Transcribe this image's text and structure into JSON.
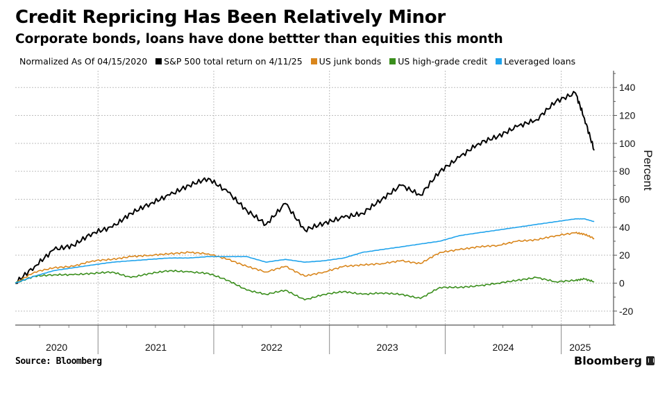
{
  "header": {
    "title": "Credit Repricing Has Been Relatively Minor",
    "subtitle": "Corporate bonds, loans have done bettter than equities this month"
  },
  "legend": {
    "note": "Normalized As Of 04/15/2020",
    "items": [
      {
        "label": "S&P 500 total return on 4/11/25",
        "color": "#000000"
      },
      {
        "label": "US junk bonds",
        "color": "#d9861c"
      },
      {
        "label": "US high-grade credit",
        "color": "#3a8e1c"
      },
      {
        "label": "Leveraged loans",
        "color": "#1fa3ec"
      }
    ]
  },
  "footer": {
    "source": "Source: Bloomberg",
    "brand": "Bloomberg"
  },
  "chart_data": {
    "type": "line",
    "title": "Credit Repricing Has Been Relatively Minor",
    "subtitle": "Corporate bonds, loans have done bettter than equities this month",
    "xlabel": "",
    "ylabel": "Percent",
    "ylim": [
      -30,
      152
    ],
    "yticks": [
      -20,
      0,
      20,
      40,
      60,
      80,
      100,
      120,
      140
    ],
    "xlim": [
      "2020-04-15",
      "2025-06-15"
    ],
    "xtick_labels": [
      "2020",
      "2021",
      "2022",
      "2023",
      "2024",
      "2025"
    ],
    "year_boundaries": [
      "2021-01-01",
      "2022-01-01",
      "2023-01-01",
      "2024-01-01",
      "2025-01-01"
    ],
    "grid": true,
    "legend_position": "top",
    "y_axis_side": "right",
    "x": [
      "2020-04",
      "2020-06",
      "2020-08",
      "2020-10",
      "2020-12",
      "2021-02",
      "2021-04",
      "2021-06",
      "2021-08",
      "2021-10",
      "2021-12",
      "2022-02",
      "2022-04",
      "2022-06",
      "2022-08",
      "2022-10",
      "2022-12",
      "2023-02",
      "2023-04",
      "2023-06",
      "2023-08",
      "2023-10",
      "2023-12",
      "2024-02",
      "2024-04",
      "2024-06",
      "2024-08",
      "2024-10",
      "2024-12",
      "2025-02",
      "2025-03",
      "2025-04"
    ],
    "series": [
      {
        "name": "S&P 500 total return on 4/11/25",
        "color": "#000000",
        "values": [
          0,
          12,
          24,
          27,
          36,
          40,
          50,
          57,
          63,
          70,
          75,
          65,
          52,
          42,
          57,
          38,
          43,
          47,
          50,
          60,
          70,
          63,
          80,
          90,
          100,
          105,
          112,
          117,
          130,
          136,
          118,
          95
        ]
      },
      {
        "name": "US junk bonds",
        "color": "#d9861c",
        "values": [
          0,
          8,
          11,
          12,
          16,
          17,
          19,
          20,
          21,
          22,
          21,
          17,
          12,
          8,
          12,
          5,
          8,
          12,
          13,
          14,
          16,
          14,
          22,
          24,
          26,
          27,
          30,
          31,
          34,
          36,
          35,
          32
        ]
      },
      {
        "name": "US high-grade credit",
        "color": "#3a8e1c",
        "values": [
          0,
          5,
          6,
          6,
          7,
          8,
          4,
          7,
          9,
          8,
          7,
          2,
          -5,
          -8,
          -5,
          -12,
          -8,
          -6,
          -8,
          -7,
          -8,
          -11,
          -3,
          -3,
          -2,
          0,
          2,
          4,
          1,
          2,
          3,
          1
        ]
      },
      {
        "name": "Leveraged loans",
        "color": "#1fa3ec",
        "values": [
          0,
          5,
          9,
          11,
          13,
          15,
          16,
          17,
          18,
          18,
          19,
          19,
          19,
          15,
          17,
          15,
          16,
          18,
          22,
          24,
          26,
          28,
          30,
          34,
          36,
          38,
          40,
          42,
          44,
          46,
          46,
          44
        ]
      }
    ]
  }
}
